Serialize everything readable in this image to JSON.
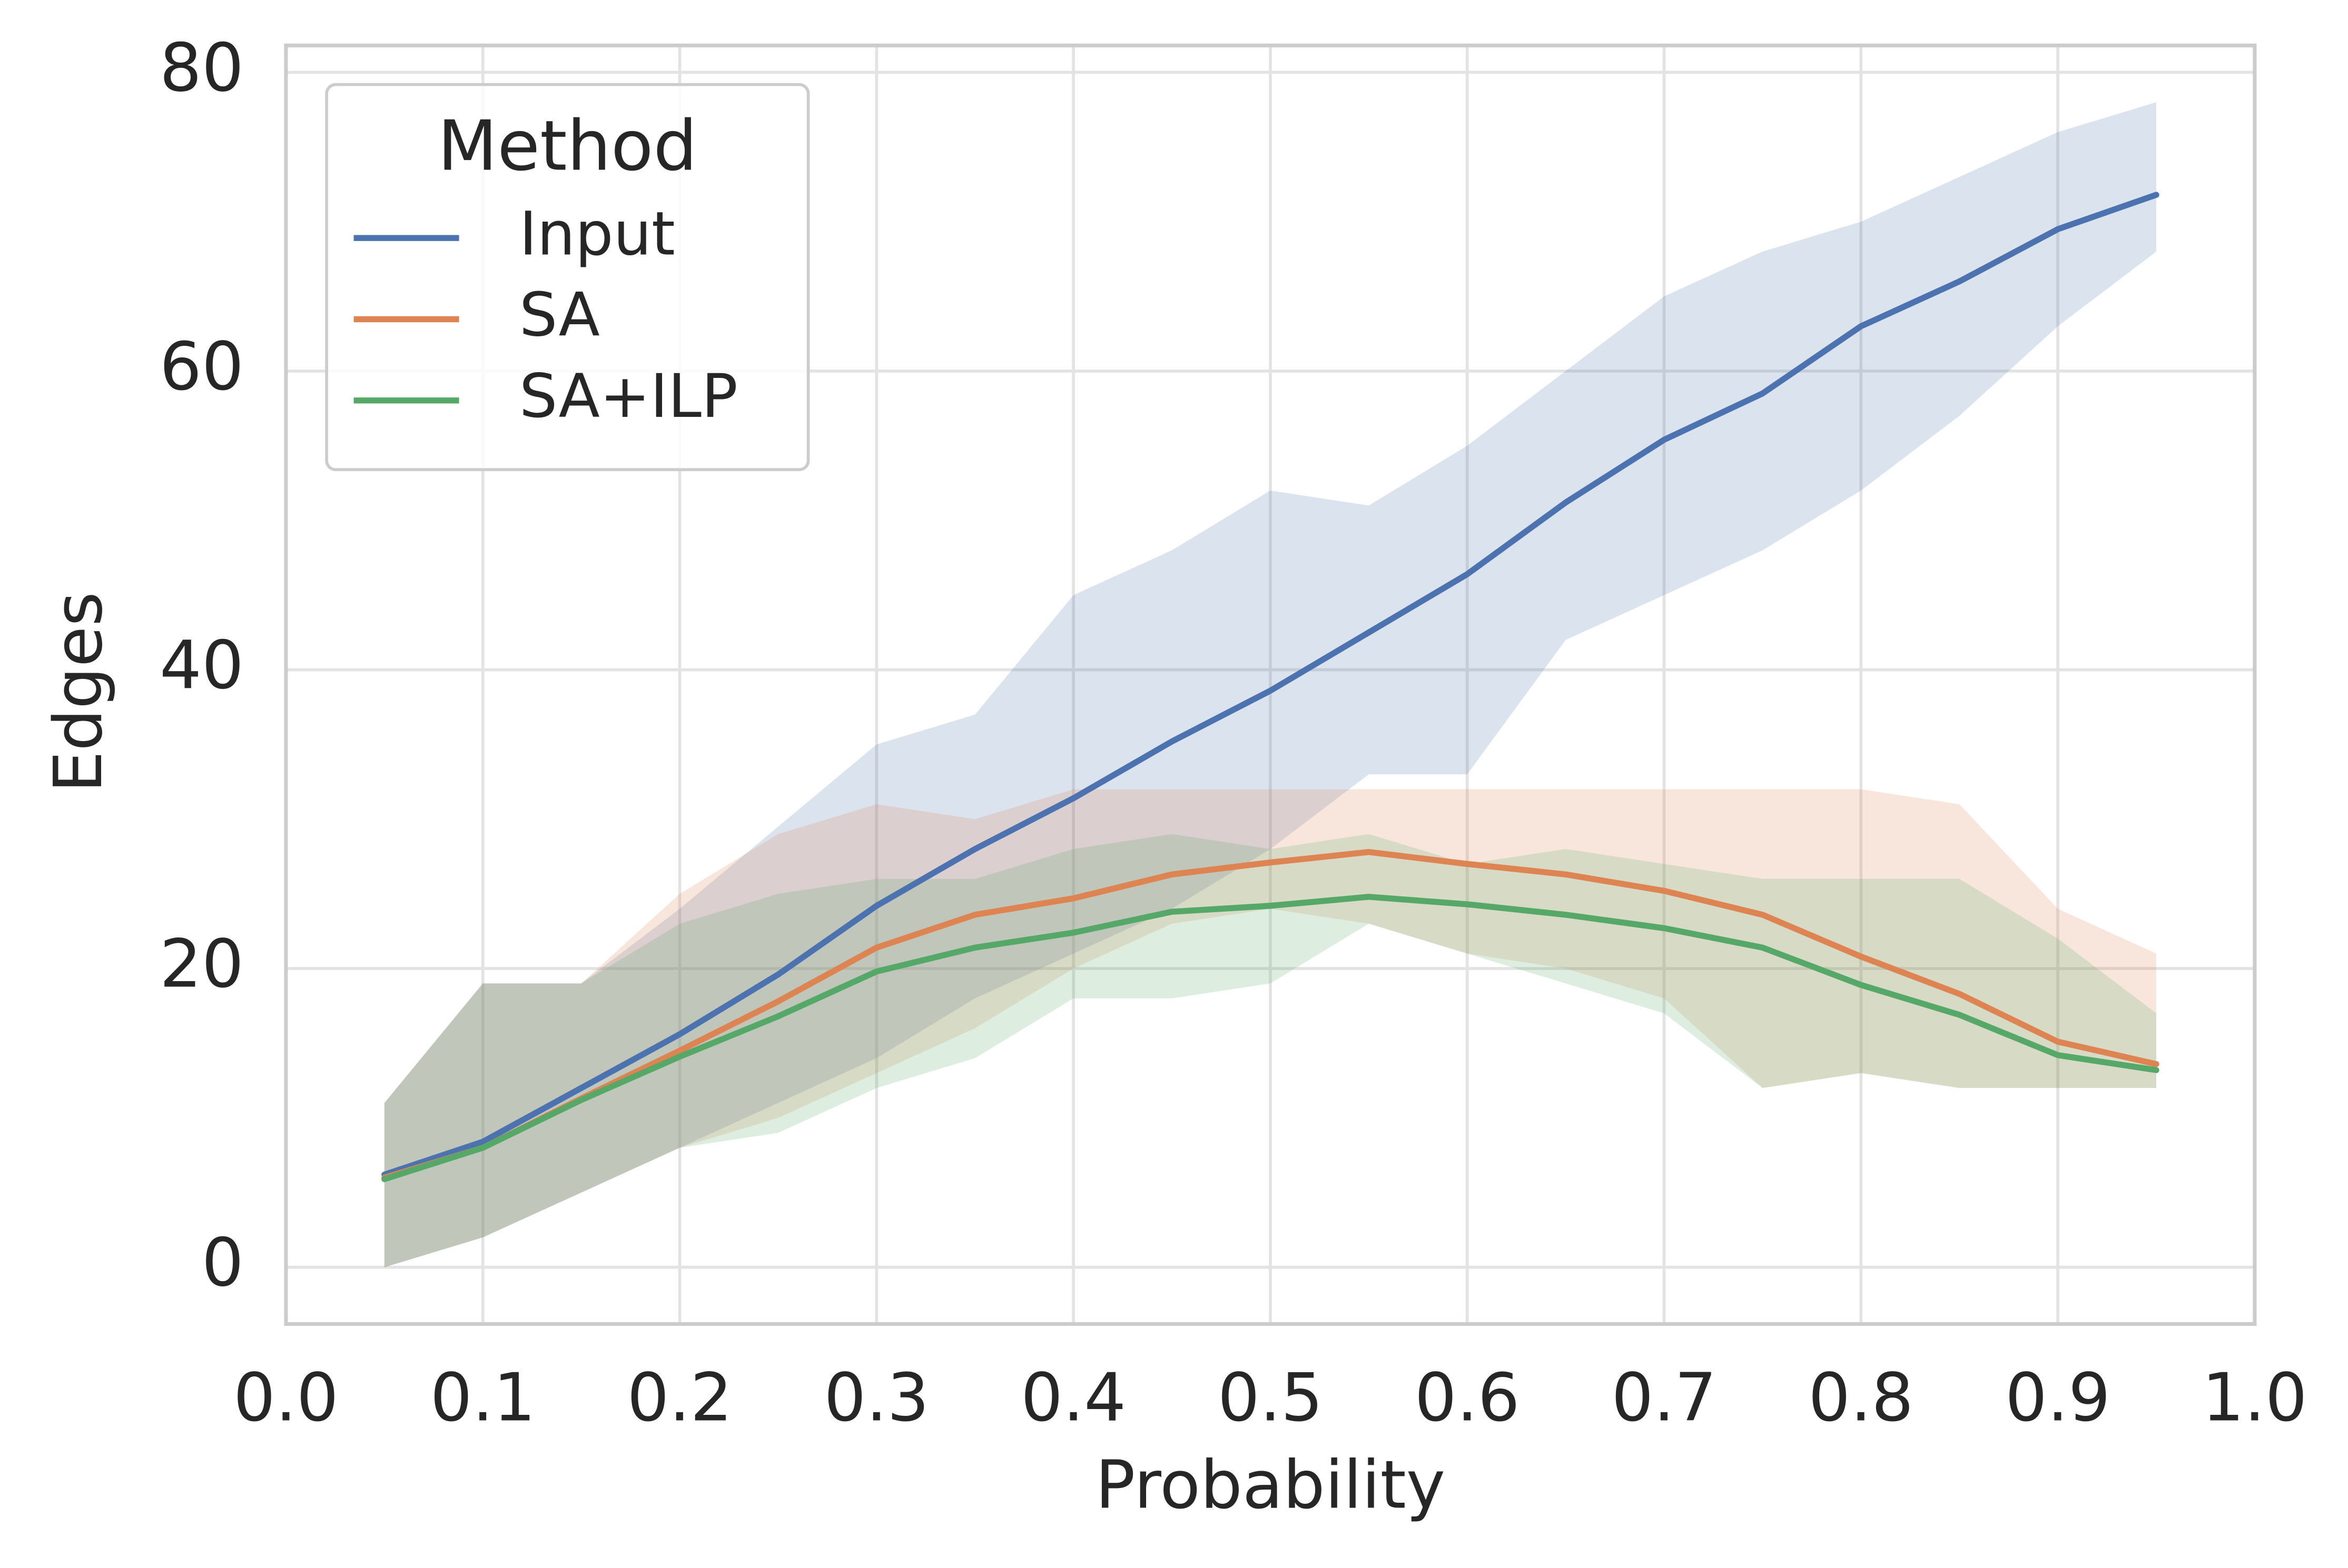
{
  "chart_data": {
    "type": "line",
    "x_label": "Probability",
    "y_label": "Edges",
    "legend_title": "Method",
    "legend_loc": "upper left",
    "grid": true,
    "xlim": [
      0,
      1
    ],
    "ylim": [
      -3.8,
      81.8
    ],
    "xticks": [
      {
        "value": 0,
        "label": "0.0"
      },
      0.1,
      0.2,
      0.3,
      0.4,
      0.5,
      0.6,
      0.7,
      0.8,
      0.9,
      {
        "value": 1,
        "label": "1.0"
      }
    ],
    "yticks": [
      0,
      20,
      40,
      60,
      80
    ],
    "x": [
      0.05,
      0.1,
      0.15,
      0.2,
      0.25,
      0.3,
      0.35,
      0.4,
      0.45,
      0.5,
      0.55,
      0.6,
      0.65,
      0.7,
      0.75,
      0.8,
      0.85,
      0.9,
      0.95
    ],
    "series": [
      {
        "name": "Input",
        "color": "#4c72b0",
        "values": [
          6.2,
          8.4,
          12,
          15.6,
          19.6,
          24.2,
          28,
          31.4,
          35.2,
          38.6,
          42.5,
          46.4,
          51.2,
          55.4,
          58.5,
          63,
          66,
          69.5,
          71.8
        ],
        "lower": [
          0,
          2,
          5,
          8,
          11,
          14,
          18,
          21,
          24,
          28,
          33,
          33,
          42,
          45,
          48,
          52,
          57,
          63,
          68
        ],
        "upper": [
          11,
          19,
          19,
          24,
          29.5,
          35,
          37,
          45,
          48,
          52,
          51,
          55,
          60,
          65,
          68,
          70,
          73,
          76,
          78
        ]
      },
      {
        "name": "SA",
        "color": "#dd8452",
        "values": [
          6,
          8,
          11.3,
          14.5,
          17.8,
          21.4,
          23.6,
          24.7,
          26.3,
          27.1,
          27.8,
          27,
          26.3,
          25.2,
          23.6,
          20.8,
          18.3,
          15.1,
          13.6
        ],
        "lower": [
          0,
          2,
          5,
          8,
          10,
          13,
          16,
          20,
          23,
          24,
          23,
          21,
          20,
          18,
          12,
          13,
          12,
          12,
          12
        ],
        "upper": [
          11,
          19,
          19,
          25,
          29,
          31,
          30,
          32,
          32,
          32,
          32,
          32,
          32,
          32,
          32,
          32,
          31,
          24,
          21
        ]
      },
      {
        "name": "SA+ILP",
        "color": "#55a868",
        "values": [
          5.9,
          8,
          11.2,
          14.1,
          16.8,
          19.8,
          21.4,
          22.4,
          23.8,
          24.2,
          24.8,
          24.3,
          23.6,
          22.7,
          21.4,
          18.9,
          16.9,
          14.2,
          13.2
        ],
        "lower": [
          0,
          2,
          5,
          8,
          9,
          12,
          14,
          18,
          18,
          19,
          23,
          21,
          19,
          17,
          12,
          13,
          12,
          12,
          12
        ],
        "upper": [
          11,
          19,
          19,
          23,
          25,
          26,
          26,
          28,
          29,
          28,
          29,
          27,
          28,
          27,
          26,
          26,
          26,
          22,
          17
        ]
      }
    ]
  }
}
